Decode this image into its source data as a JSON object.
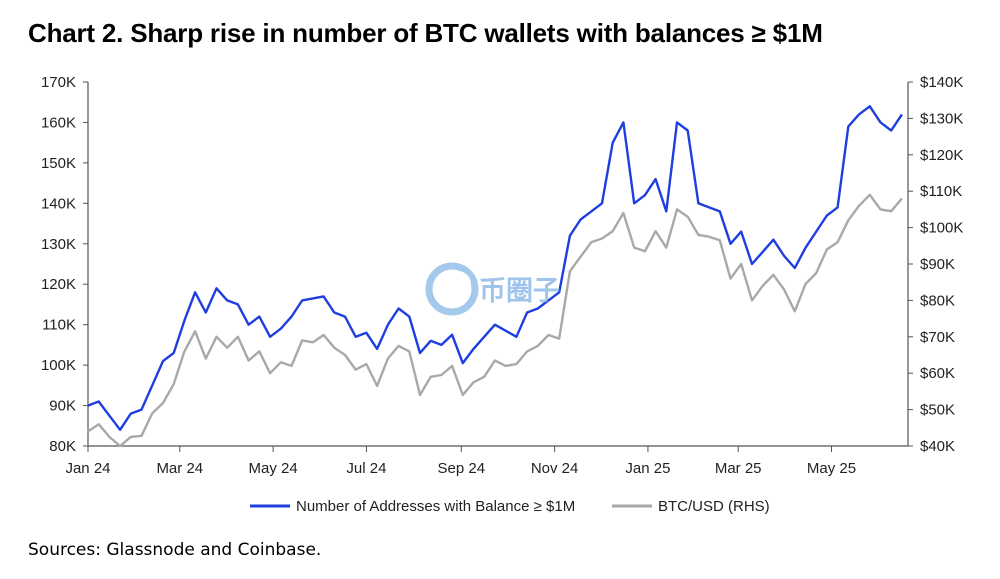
{
  "title": "Chart 2. Sharp rise in number of BTC wallets with balances ≥ $1M",
  "source": "Sources: Glassnode and Coinbase.",
  "watermark": "币圈子",
  "colors": {
    "addresses": "#1f3ee0",
    "btc": "#a9a9a9",
    "axis": "#555555",
    "grid": "#d8d8d8"
  },
  "chart_data": {
    "type": "line",
    "x_ticks": [
      "Jan 24",
      "Mar 24",
      "May 24",
      "Jul 24",
      "Sep 24",
      "Nov 24",
      "Jan 25",
      "Mar 25",
      "May 25"
    ],
    "y_left_ticks": [
      "80K",
      "90K",
      "100K",
      "110K",
      "120K",
      "130K",
      "140K",
      "150K",
      "160K",
      "170K"
    ],
    "y_right_ticks": [
      "$40K",
      "$50K",
      "$60K",
      "$70K",
      "$80K",
      "$90K",
      "$100K",
      "$110K",
      "$120K",
      "$130K",
      "$140K"
    ],
    "ylim_left": [
      80000,
      170000
    ],
    "ylim_right": [
      40000,
      140000
    ],
    "grid": false,
    "legend_position": "bottom",
    "series": [
      {
        "name": "Number of Addresses with Balance ≥ $1M",
        "axis": "left",
        "points": [
          [
            "2024-01-01",
            90000
          ],
          [
            "2024-01-08",
            91000
          ],
          [
            "2024-01-15",
            87500
          ],
          [
            "2024-01-22",
            84000
          ],
          [
            "2024-01-29",
            88000
          ],
          [
            "2024-02-05",
            89000
          ],
          [
            "2024-02-12",
            95000
          ],
          [
            "2024-02-19",
            101000
          ],
          [
            "2024-02-26",
            103000
          ],
          [
            "2024-03-04",
            111000
          ],
          [
            "2024-03-11",
            118000
          ],
          [
            "2024-03-18",
            113000
          ],
          [
            "2024-03-25",
            119000
          ],
          [
            "2024-04-01",
            116000
          ],
          [
            "2024-04-08",
            115000
          ],
          [
            "2024-04-15",
            110000
          ],
          [
            "2024-04-22",
            112000
          ],
          [
            "2024-04-29",
            107000
          ],
          [
            "2024-05-06",
            109000
          ],
          [
            "2024-05-13",
            112000
          ],
          [
            "2024-05-20",
            116000
          ],
          [
            "2024-05-27",
            116500
          ],
          [
            "2024-06-03",
            117000
          ],
          [
            "2024-06-10",
            113000
          ],
          [
            "2024-06-17",
            112000
          ],
          [
            "2024-06-24",
            107000
          ],
          [
            "2024-07-01",
            108000
          ],
          [
            "2024-07-08",
            104000
          ],
          [
            "2024-07-15",
            110000
          ],
          [
            "2024-07-22",
            114000
          ],
          [
            "2024-07-29",
            112000
          ],
          [
            "2024-08-05",
            103000
          ],
          [
            "2024-08-12",
            106000
          ],
          [
            "2024-08-19",
            105000
          ],
          [
            "2024-08-26",
            107500
          ],
          [
            "2024-09-02",
            100500
          ],
          [
            "2024-09-09",
            104000
          ],
          [
            "2024-09-16",
            107000
          ],
          [
            "2024-09-23",
            110000
          ],
          [
            "2024-09-30",
            108500
          ],
          [
            "2024-10-07",
            107000
          ],
          [
            "2024-10-14",
            113000
          ],
          [
            "2024-10-21",
            114000
          ],
          [
            "2024-10-28",
            116000
          ],
          [
            "2024-11-04",
            118000
          ],
          [
            "2024-11-11",
            132000
          ],
          [
            "2024-11-18",
            136000
          ],
          [
            "2024-11-25",
            138000
          ],
          [
            "2024-12-02",
            140000
          ],
          [
            "2024-12-09",
            155000
          ],
          [
            "2024-12-16",
            160000
          ],
          [
            "2024-12-23",
            140000
          ],
          [
            "2024-12-30",
            142000
          ],
          [
            "2025-01-06",
            146000
          ],
          [
            "2025-01-13",
            138000
          ],
          [
            "2025-01-20",
            160000
          ],
          [
            "2025-01-27",
            158000
          ],
          [
            "2025-02-03",
            140000
          ],
          [
            "2025-02-10",
            139000
          ],
          [
            "2025-02-17",
            138000
          ],
          [
            "2025-02-24",
            130000
          ],
          [
            "2025-03-03",
            133000
          ],
          [
            "2025-03-10",
            125000
          ],
          [
            "2025-03-17",
            128000
          ],
          [
            "2025-03-24",
            131000
          ],
          [
            "2025-03-31",
            127000
          ],
          [
            "2025-04-07",
            124000
          ],
          [
            "2025-04-14",
            129000
          ],
          [
            "2025-04-21",
            133000
          ],
          [
            "2025-04-28",
            137000
          ],
          [
            "2025-05-05",
            139000
          ],
          [
            "2025-05-12",
            159000
          ],
          [
            "2025-05-19",
            162000
          ],
          [
            "2025-05-26",
            164000
          ],
          [
            "2025-06-02",
            160000
          ],
          [
            "2025-06-09",
            158000
          ],
          [
            "2025-06-16",
            162000
          ]
        ]
      },
      {
        "name": "BTC/USD (RHS)",
        "axis": "right",
        "points": [
          [
            "2024-01-01",
            44000
          ],
          [
            "2024-01-08",
            46000
          ],
          [
            "2024-01-15",
            42500
          ],
          [
            "2024-01-22",
            40000
          ],
          [
            "2024-01-29",
            42500
          ],
          [
            "2024-02-05",
            42800
          ],
          [
            "2024-02-12",
            49000
          ],
          [
            "2024-02-19",
            51800
          ],
          [
            "2024-02-26",
            57000
          ],
          [
            "2024-03-04",
            66000
          ],
          [
            "2024-03-11",
            71500
          ],
          [
            "2024-03-18",
            64000
          ],
          [
            "2024-03-25",
            70000
          ],
          [
            "2024-04-01",
            67000
          ],
          [
            "2024-04-08",
            70000
          ],
          [
            "2024-04-15",
            63500
          ],
          [
            "2024-04-22",
            66000
          ],
          [
            "2024-04-29",
            60000
          ],
          [
            "2024-05-06",
            63000
          ],
          [
            "2024-05-13",
            62000
          ],
          [
            "2024-05-20",
            69000
          ],
          [
            "2024-05-27",
            68500
          ],
          [
            "2024-06-03",
            70500
          ],
          [
            "2024-06-10",
            67000
          ],
          [
            "2024-06-17",
            65000
          ],
          [
            "2024-06-24",
            61000
          ],
          [
            "2024-07-01",
            62500
          ],
          [
            "2024-07-08",
            56500
          ],
          [
            "2024-07-15",
            64000
          ],
          [
            "2024-07-22",
            67500
          ],
          [
            "2024-07-29",
            66000
          ],
          [
            "2024-08-05",
            54000
          ],
          [
            "2024-08-12",
            59000
          ],
          [
            "2024-08-19",
            59500
          ],
          [
            "2024-08-26",
            62000
          ],
          [
            "2024-09-02",
            54000
          ],
          [
            "2024-09-09",
            57500
          ],
          [
            "2024-09-16",
            59000
          ],
          [
            "2024-09-23",
            63500
          ],
          [
            "2024-09-30",
            62000
          ],
          [
            "2024-10-07",
            62500
          ],
          [
            "2024-10-14",
            66000
          ],
          [
            "2024-10-21",
            67500
          ],
          [
            "2024-10-28",
            70500
          ],
          [
            "2024-11-04",
            69500
          ],
          [
            "2024-11-11",
            88000
          ],
          [
            "2024-11-18",
            92000
          ],
          [
            "2024-11-25",
            96000
          ],
          [
            "2024-12-02",
            97000
          ],
          [
            "2024-12-09",
            99000
          ],
          [
            "2024-12-16",
            104000
          ],
          [
            "2024-12-23",
            94500
          ],
          [
            "2024-12-30",
            93500
          ],
          [
            "2025-01-06",
            99000
          ],
          [
            "2025-01-13",
            94500
          ],
          [
            "2025-01-20",
            105000
          ],
          [
            "2025-01-27",
            103000
          ],
          [
            "2025-02-03",
            98000
          ],
          [
            "2025-02-10",
            97500
          ],
          [
            "2025-02-17",
            96500
          ],
          [
            "2025-02-24",
            86000
          ],
          [
            "2025-03-03",
            90000
          ],
          [
            "2025-03-10",
            80000
          ],
          [
            "2025-03-17",
            84000
          ],
          [
            "2025-03-24",
            87000
          ],
          [
            "2025-03-31",
            83000
          ],
          [
            "2025-04-07",
            77000
          ],
          [
            "2025-04-14",
            84500
          ],
          [
            "2025-04-21",
            87500
          ],
          [
            "2025-04-28",
            94000
          ],
          [
            "2025-05-05",
            96000
          ],
          [
            "2025-05-12",
            102000
          ],
          [
            "2025-05-19",
            106000
          ],
          [
            "2025-05-26",
            109000
          ],
          [
            "2025-06-02",
            105000
          ],
          [
            "2025-06-09",
            104500
          ],
          [
            "2025-06-16",
            108000
          ]
        ]
      }
    ]
  }
}
